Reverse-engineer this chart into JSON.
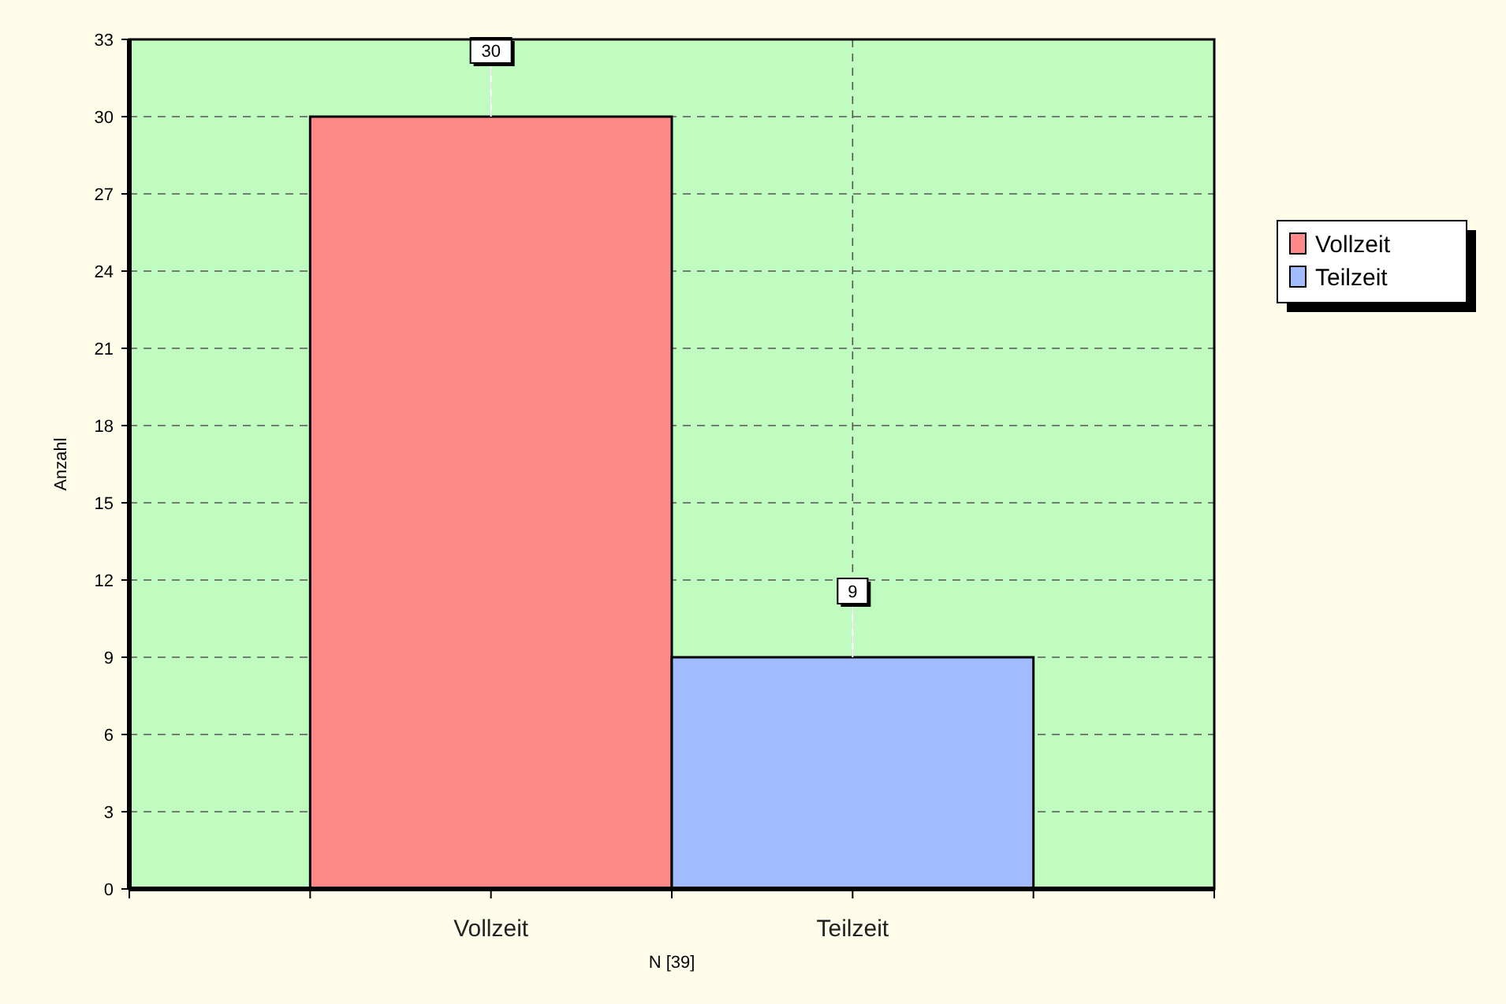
{
  "chart_data": {
    "type": "bar",
    "categories": [
      "Vollzeit",
      "Teilzeit"
    ],
    "series": [
      {
        "name": "Vollzeit",
        "color": "#ff8888",
        "values": [
          30,
          null
        ]
      },
      {
        "name": "Teilzeit",
        "color": "#a0bcff",
        "values": [
          null,
          9
        ]
      }
    ],
    "ylim": [
      0,
      33
    ],
    "yticks": [
      0,
      3,
      6,
      9,
      12,
      15,
      18,
      21,
      24,
      27,
      30,
      33
    ],
    "ylabel": "Anzahl",
    "xlabel": "N [39]",
    "grid": true,
    "legend": "right",
    "data_labels": true
  }
}
